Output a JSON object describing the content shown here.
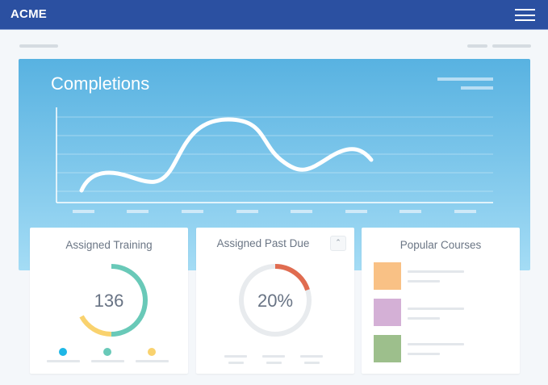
{
  "header": {
    "logo": "ACME",
    "menu_icon": "hamburger-icon"
  },
  "completions": {
    "title": "Completions"
  },
  "assigned_training": {
    "title": "Assigned Training",
    "value": "136",
    "segments": [
      {
        "color": "#69c9b8",
        "fraction": 0.5
      },
      {
        "color": "#f9d26e",
        "fraction": 0.17
      }
    ],
    "legend_colors": [
      "#1eb7e6",
      "#69c9b8",
      "#f9d26e"
    ]
  },
  "assigned_past_due": {
    "title": "Assigned Past Due",
    "value": "20%",
    "fraction": 0.2,
    "color": "#e06c50",
    "toggle_icon": "chevron-up-icon"
  },
  "popular_courses": {
    "title": "Popular Courses",
    "swatches": [
      "#f9c185",
      "#d4b0d6",
      "#9dbf8c"
    ]
  }
}
